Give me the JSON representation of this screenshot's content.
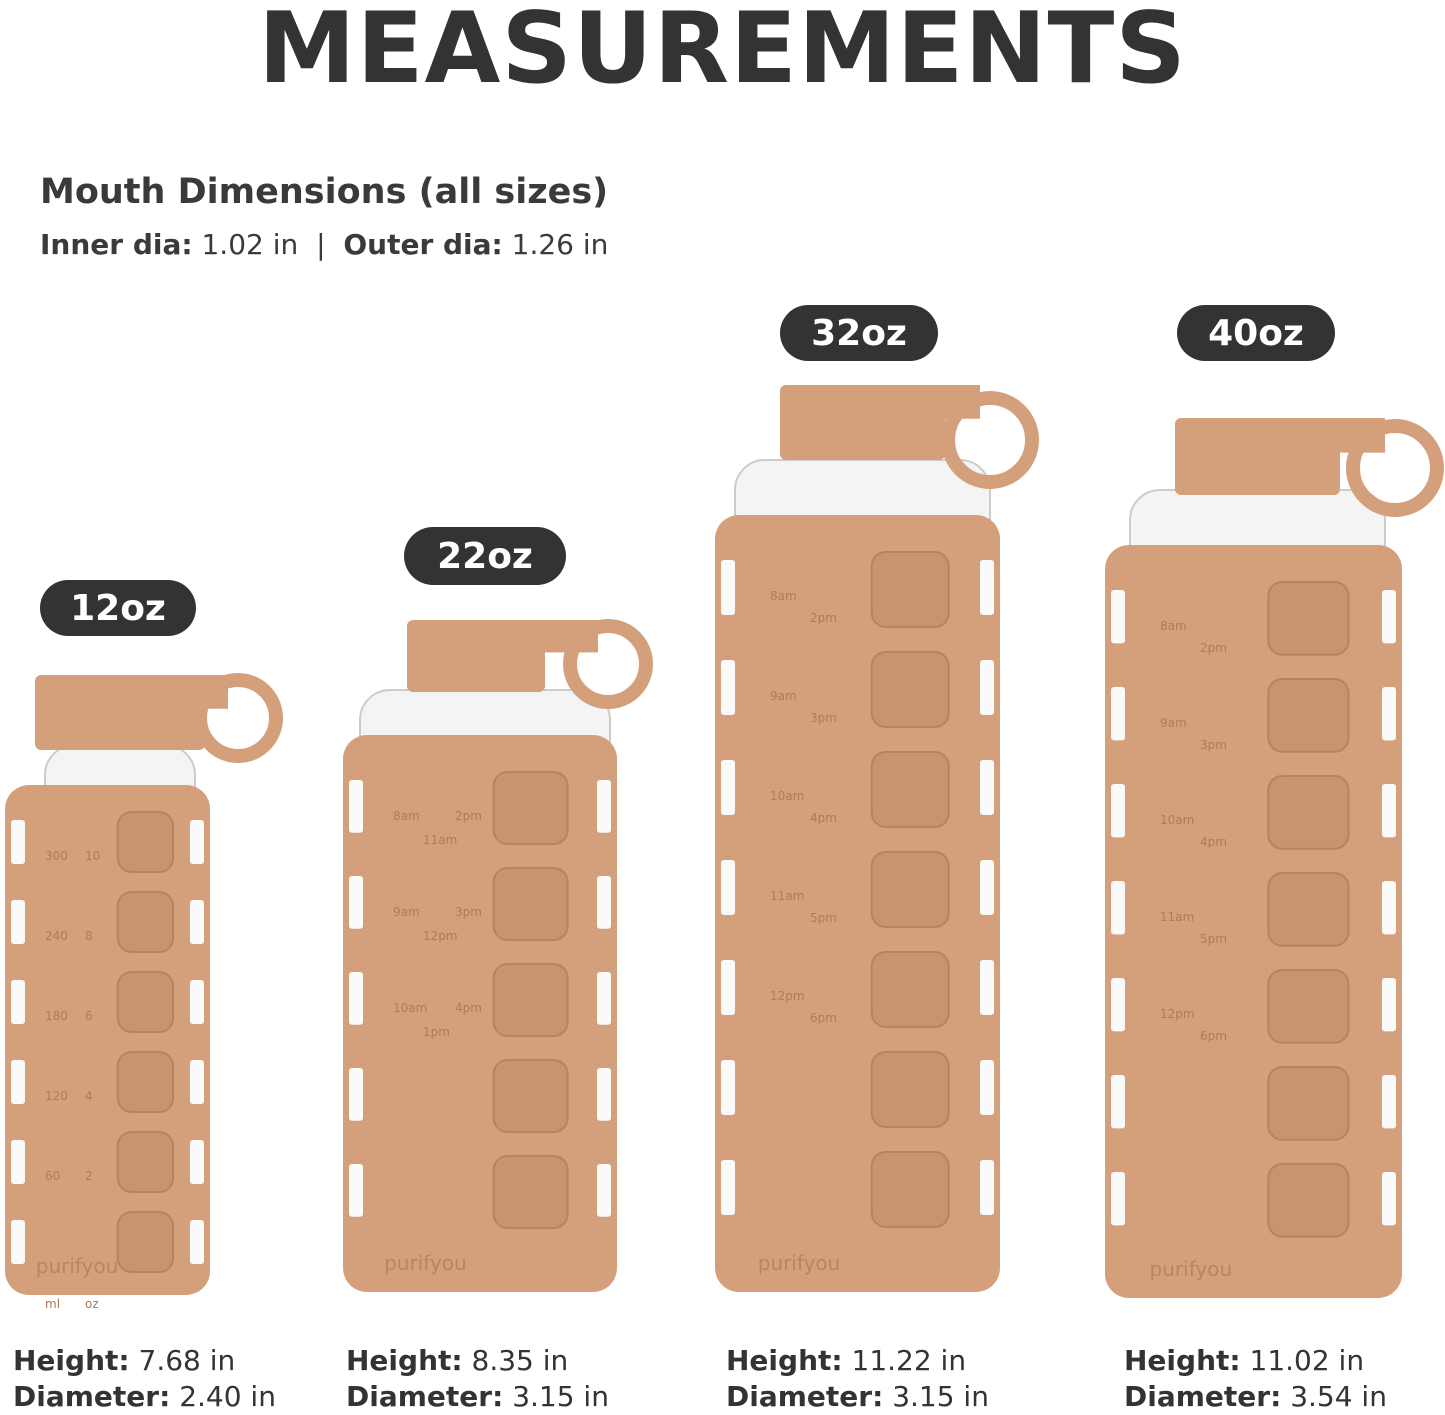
{
  "title": "MEASUREMENTS",
  "mouth": {
    "heading": "Mouth Dimensions (all sizes)",
    "inner_label": "Inner dia:",
    "inner_value": "1.02 in",
    "separator": "|",
    "outer_label": "Outer dia:",
    "outer_value": "1.26 in"
  },
  "colors": {
    "sleeve": "#d4a07c",
    "badge": "#333333",
    "text": "#333333"
  },
  "brand": "purifyou",
  "bottles": [
    {
      "size": "12oz",
      "height_label": "Height:",
      "height": "7.68 in",
      "diameter_label": "Diameter:",
      "diameter": "2.40 in",
      "marks": [
        "300",
        "10",
        "240",
        "8",
        "180",
        "6",
        "120",
        "4",
        "60",
        "2",
        "ml",
        "oz"
      ]
    },
    {
      "size": "22oz",
      "height_label": "Height:",
      "height": "8.35 in",
      "diameter_label": "Diameter:",
      "diameter": "3.15 in",
      "marks": [
        "8am",
        "2pm",
        "11am",
        "9am",
        "3pm",
        "12pm",
        "10am",
        "4pm",
        "1pm"
      ]
    },
    {
      "size": "32oz",
      "height_label": "Height:",
      "height": "11.22 in",
      "diameter_label": "Diameter:",
      "diameter": "3.15 in",
      "marks": [
        "8am",
        "2pm",
        "9am",
        "3pm",
        "10am",
        "4pm",
        "11am",
        "5pm",
        "12pm",
        "6pm"
      ]
    },
    {
      "size": "40oz",
      "height_label": "Height:",
      "height": "11.02 in",
      "diameter_label": "Diameter:",
      "diameter": "3.54 in",
      "marks": [
        "8am",
        "2pm",
        "9am",
        "3pm",
        "10am",
        "4pm",
        "11am",
        "5pm",
        "12pm",
        "6pm"
      ]
    }
  ]
}
